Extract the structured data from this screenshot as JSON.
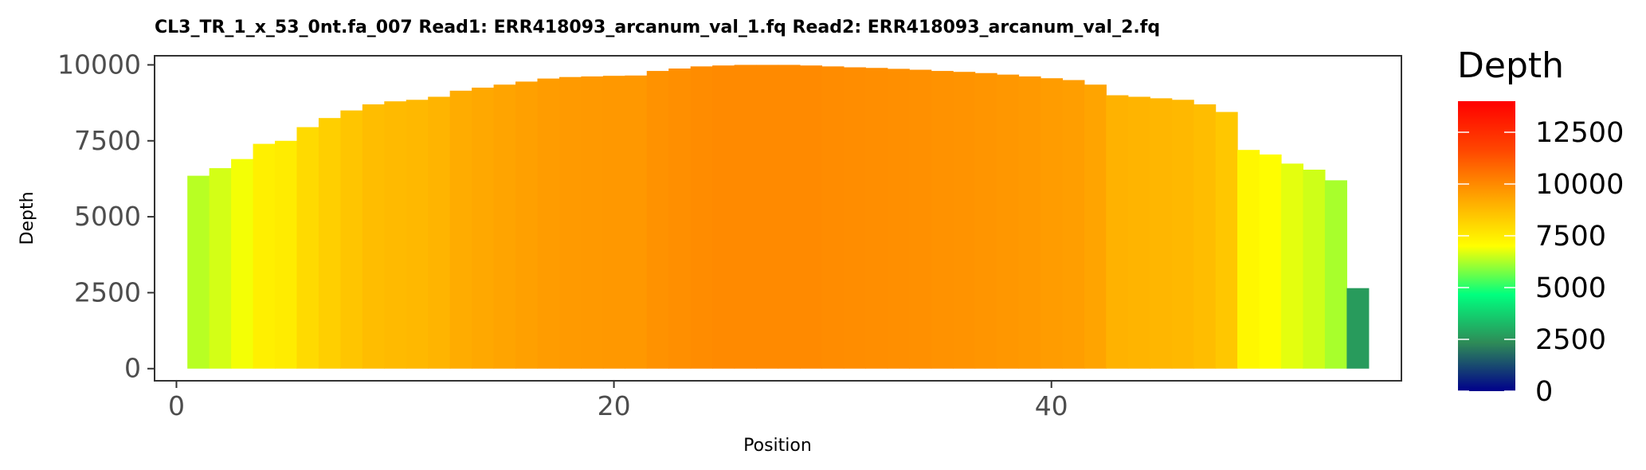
{
  "chart_data": {
    "type": "bar",
    "title": "CL3_TR_1_x_53_0nt.fa_007   Read1: ERR418093_arcanum_val_1.fq   Read2: ERR418093_arcanum_val_2.fq",
    "xlabel": "Position",
    "ylabel": "Depth",
    "xlim": [
      -1,
      56
    ],
    "ylim": [
      -400,
      10300
    ],
    "xticks": [
      0,
      20,
      40
    ],
    "xtick_labels": [
      "0",
      "20",
      "40"
    ],
    "yticks": [
      0,
      2500,
      5000,
      7500,
      10000
    ],
    "ytick_labels": [
      "0",
      "2500",
      "5000",
      "7500",
      "10000"
    ],
    "x": [
      1,
      2,
      3,
      4,
      5,
      6,
      7,
      8,
      9,
      10,
      11,
      12,
      13,
      14,
      15,
      16,
      17,
      18,
      19,
      20,
      21,
      22,
      23,
      24,
      25,
      26,
      27,
      28,
      29,
      30,
      31,
      32,
      33,
      34,
      35,
      36,
      37,
      38,
      39,
      40,
      41,
      42,
      43,
      44,
      45,
      46,
      47,
      48,
      49,
      50,
      51,
      52,
      53,
      54
    ],
    "values": [
      6350,
      6600,
      6900,
      7400,
      7500,
      7950,
      8250,
      8500,
      8700,
      8800,
      8850,
      8950,
      9150,
      9250,
      9350,
      9450,
      9550,
      9600,
      9620,
      9640,
      9650,
      9800,
      9880,
      9950,
      9980,
      10000,
      10000,
      10000,
      9980,
      9950,
      9920,
      9900,
      9870,
      9840,
      9800,
      9770,
      9730,
      9680,
      9620,
      9560,
      9500,
      9350,
      9000,
      8950,
      8900,
      8850,
      8700,
      8450,
      7200,
      7050,
      6750,
      6550,
      6200,
      2650
    ],
    "legend": {
      "title": "Depth",
      "position": "right",
      "min": 0,
      "max": 14000,
      "tick_values": [
        0,
        2500,
        5000,
        7500,
        10000,
        12500
      ],
      "tick_labels": [
        "0",
        "2500",
        "5000",
        "7500",
        "10000",
        "12500"
      ],
      "colors": [
        "#00008b",
        "#2e8b57",
        "#00ff7f",
        "#ffff00",
        "#ffa500",
        "#ff4500",
        "#ff0000"
      ]
    },
    "grid": false
  }
}
